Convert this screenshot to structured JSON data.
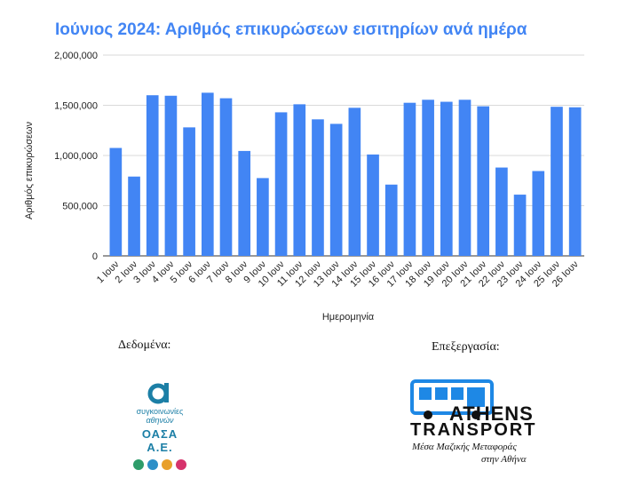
{
  "chart_data": {
    "type": "bar",
    "title": "Ιούνιος 2024: Αριθμός επικυρώσεων εισιτηρίων ανά ημέρα",
    "xlabel": "Ημερομηνία",
    "ylabel": "Αριθμός επικυρώσεων",
    "ylim": [
      0,
      2000000
    ],
    "yticks": [
      0,
      500000,
      1000000,
      1500000,
      2000000
    ],
    "ytick_labels": [
      "0",
      "500,000",
      "1,000,000",
      "1,500,000",
      "2,000,000"
    ],
    "grid": true,
    "bar_color": "#4285f4",
    "categories": [
      "1 Ιουν",
      "2 Ιουν",
      "3 Ιουν",
      "4 Ιουν",
      "5 Ιουν",
      "6 Ιουν",
      "7 Ιουν",
      "8 Ιουν",
      "9 Ιουν",
      "10 Ιουν",
      "11 Ιουν",
      "12 Ιουν",
      "13 Ιουν",
      "14 Ιουν",
      "15 Ιουν",
      "16 Ιουν",
      "17 Ιουν",
      "18 Ιουν",
      "19 Ιουν",
      "20 Ιουν",
      "21 Ιουν",
      "22 Ιουν",
      "23 Ιουν",
      "24 Ιουν",
      "25 Ιουν",
      "26 Ιουν"
    ],
    "values": [
      1075000,
      790000,
      1600000,
      1595000,
      1280000,
      1625000,
      1570000,
      1045000,
      775000,
      1430000,
      1510000,
      1360000,
      1315000,
      1475000,
      1010000,
      710000,
      1525000,
      1555000,
      1535000,
      1555000,
      1490000,
      880000,
      610000,
      845000,
      1485000,
      1480000
    ]
  },
  "credits": {
    "data_label": "Δεδομένα:",
    "processing_label": "Επεξεργασία:",
    "oasa": {
      "line1": "συγκοινωνίες",
      "line2": "αθηνών",
      "name": "ΟΑΣΑ Α.Ε.",
      "icon": "oasa-alpha-icon",
      "dot_colors": [
        "#2e9c6a",
        "#2c8fc7",
        "#e8a02b",
        "#d6336c"
      ]
    },
    "athens_transport": {
      "brand1": "ATHENS",
      "brand2": "TRANSPORT",
      "tagline1": "Μέσα Μαζικής Μεταφοράς",
      "tagline2": "στην Αθήνα",
      "icon": "bus-icon",
      "accent_color": "#1e88e5"
    }
  }
}
